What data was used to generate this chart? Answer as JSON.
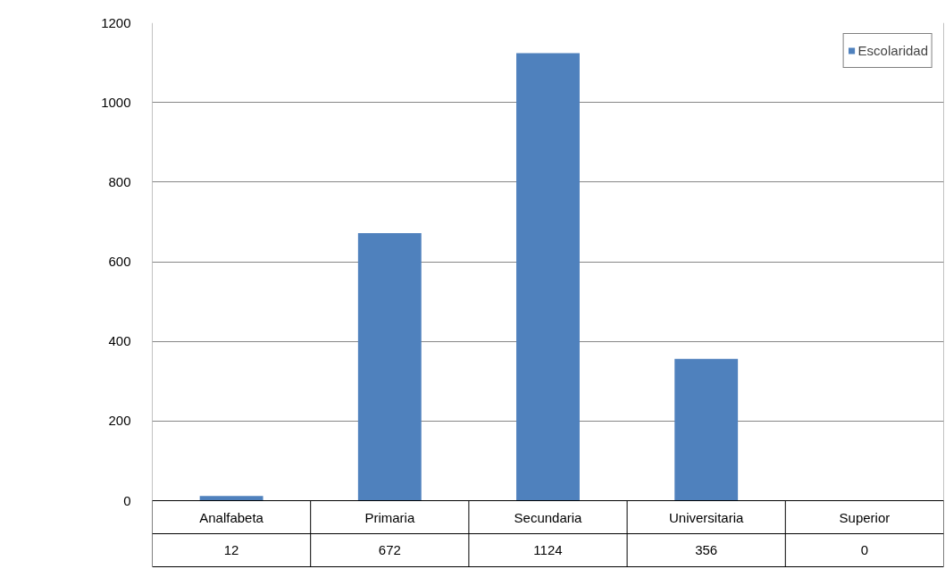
{
  "chart_data": {
    "type": "bar",
    "categories": [
      "Analfabeta",
      "Primaria",
      "Secundaria",
      "Universitaria",
      "Superior"
    ],
    "series": [
      {
        "name": "Escolaridad",
        "color": "#4f81bd",
        "values": [
          12,
          672,
          1124,
          356,
          0
        ]
      }
    ],
    "ylim": [
      0,
      1200
    ],
    "yticks": [
      0,
      200,
      400,
      600,
      800,
      1000,
      1200
    ],
    "grid": "y",
    "legend": "top right",
    "data_labels": true
  }
}
